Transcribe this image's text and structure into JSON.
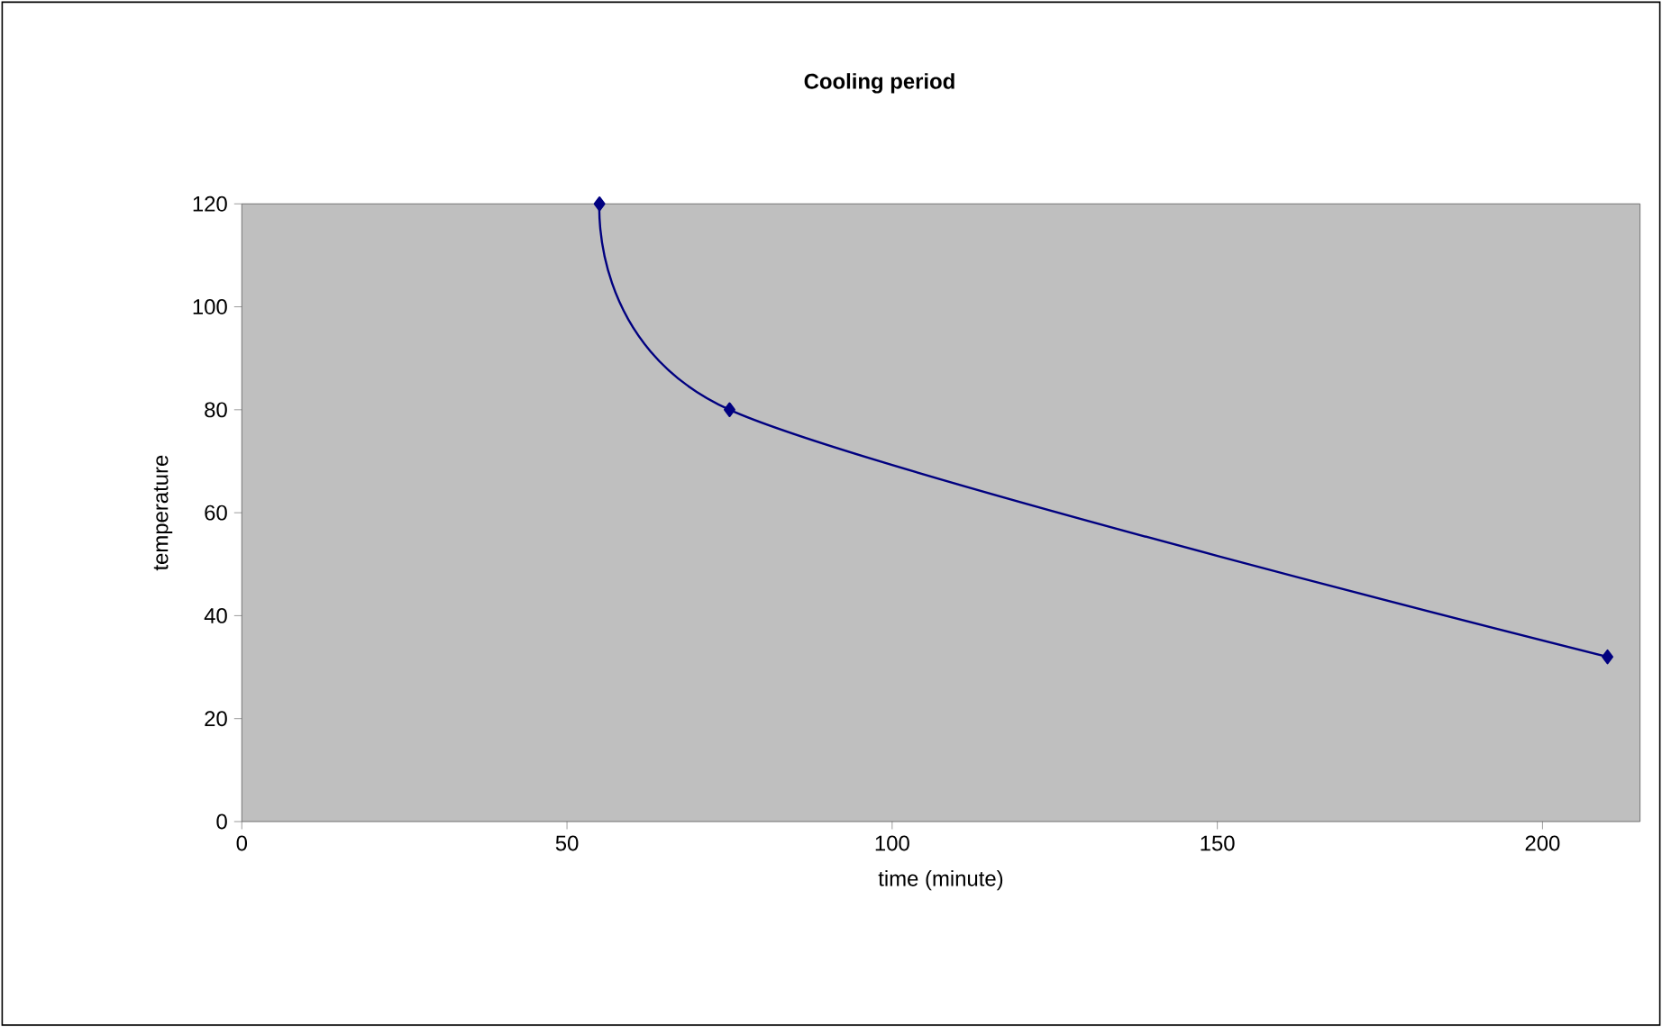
{
  "chart_data": {
    "type": "line",
    "title": "Cooling period",
    "xlabel": "time (minute)",
    "ylabel": "temperature",
    "x": [
      55,
      75,
      210
    ],
    "series": [
      {
        "color": "#000080",
        "values": [
          120,
          80,
          32
        ]
      }
    ],
    "xlim": [
      0,
      215
    ],
    "ylim": [
      0,
      120
    ],
    "xticks": [
      0,
      50,
      100,
      150,
      200
    ],
    "yticks": [
      0,
      20,
      40,
      60,
      80,
      100,
      120
    ],
    "marker": "diamond",
    "line_style": "solid"
  }
}
